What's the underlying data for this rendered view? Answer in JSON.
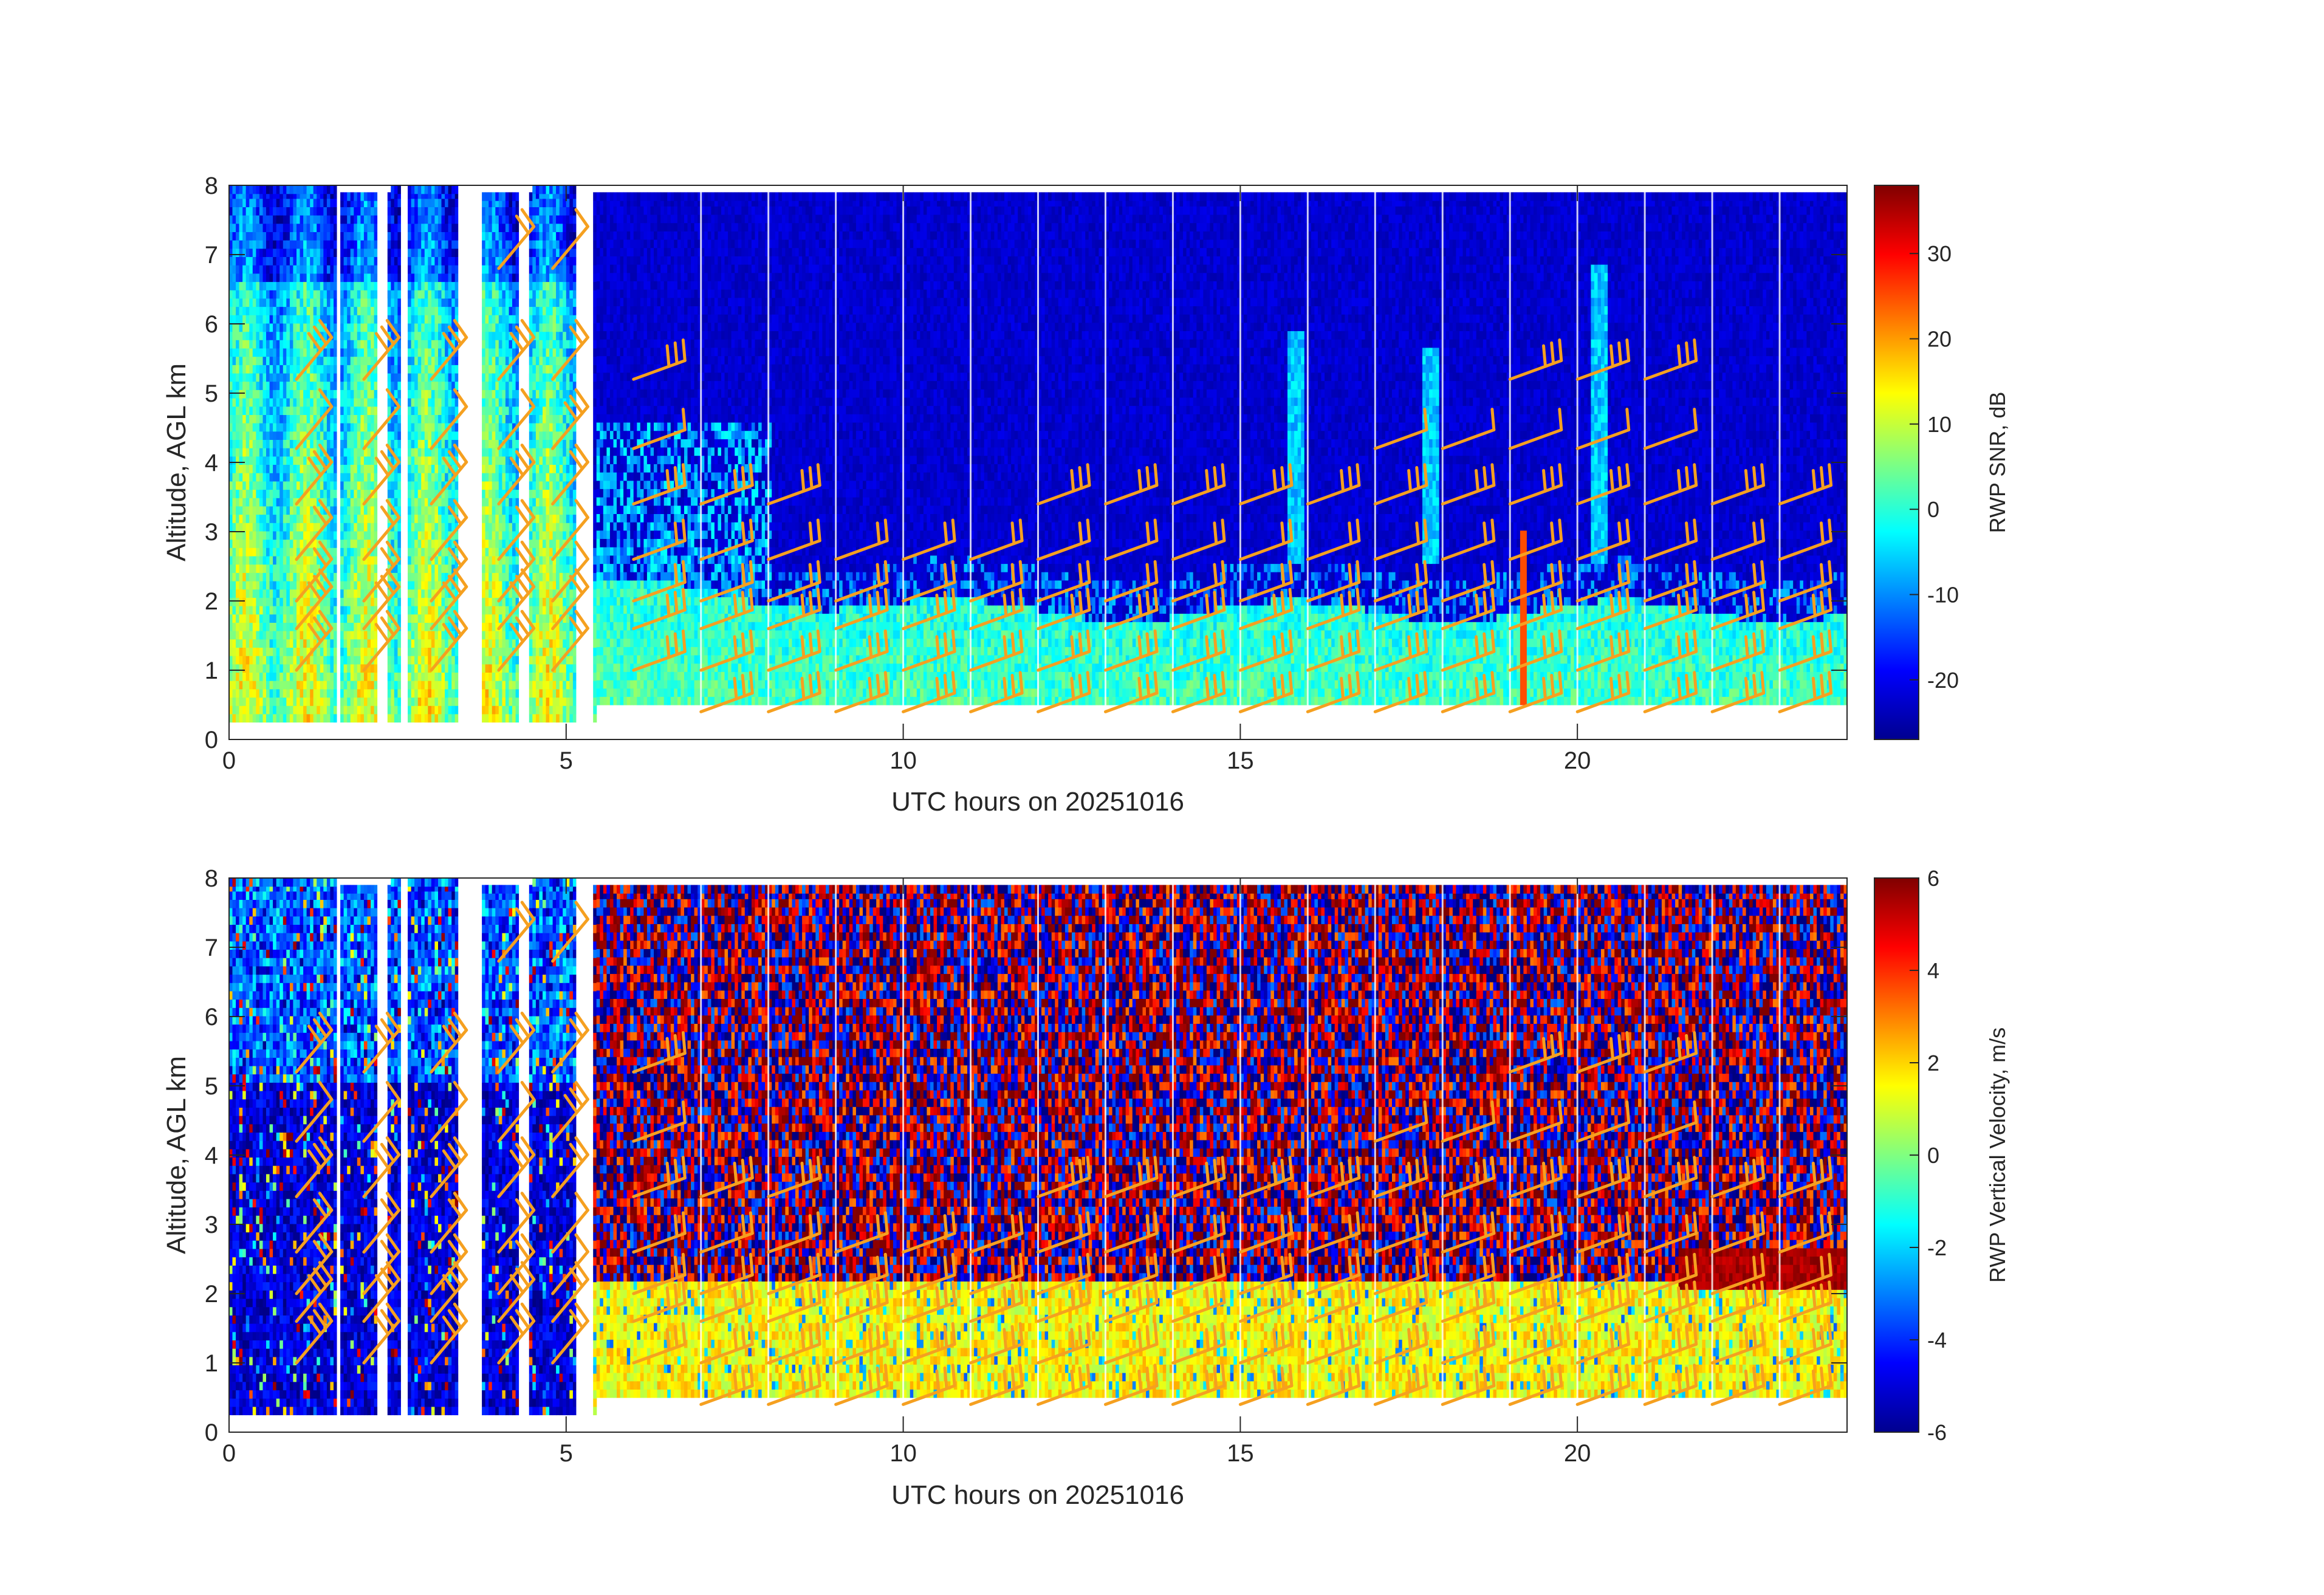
{
  "chart_data": [
    {
      "type": "heatmap",
      "id": "snr",
      "xlabel": "UTC hours on 20251016",
      "ylabel": "Altitude, AGL km",
      "xlim": [
        0,
        24
      ],
      "ylim": [
        0,
        8
      ],
      "x_ticks": [
        0,
        5,
        10,
        15,
        20
      ],
      "y_ticks": [
        0,
        1,
        2,
        3,
        4,
        5,
        6,
        7,
        8
      ],
      "grid": false,
      "colormap": "jet",
      "colorbar": {
        "label": "RWP SNR, dB",
        "range": [
          -27,
          38
        ],
        "ticks": [
          -20,
          -10,
          0,
          10,
          20,
          30
        ]
      },
      "data_gaps_hours": [
        [
          1.6,
          1.65
        ],
        [
          2.2,
          2.35
        ],
        [
          2.55,
          2.65
        ],
        [
          3.4,
          3.75
        ],
        [
          4.3,
          4.45
        ],
        [
          5.15,
          5.4
        ]
      ],
      "description_of_field": "Boundary-layer echo below ~2 km after 07 UTC; deep high-SNR columns 0-5 UTC; weak plumes near 15.8, 17.8 and 20.3 UTC up to 6-7 km; noise floor near -25 dB above",
      "overlay": "wind barbs, orange"
    },
    {
      "type": "heatmap",
      "id": "vv",
      "xlabel": "UTC hours on 20251016",
      "ylabel": "Altitude, AGL km",
      "xlim": [
        0,
        24
      ],
      "ylim": [
        0,
        8
      ],
      "x_ticks": [
        0,
        5,
        10,
        15,
        20
      ],
      "y_ticks": [
        0,
        1,
        2,
        3,
        4,
        5,
        6,
        7,
        8
      ],
      "grid": false,
      "colormap": "jet",
      "colorbar": {
        "label": "RWP Vertical Velocity, m/s",
        "range": [
          -6,
          6
        ],
        "ticks": [
          -6,
          -4,
          -2,
          0,
          2,
          4,
          6
        ]
      },
      "data_gaps_hours": [
        [
          1.6,
          1.65
        ],
        [
          2.2,
          2.35
        ],
        [
          2.55,
          2.65
        ],
        [
          3.4,
          3.75
        ],
        [
          4.3,
          4.45
        ],
        [
          5.15,
          5.4
        ]
      ],
      "description_of_field": "Near-zero velocity (green/yellow) in the boundary layer below ~2 km; strong downward motion (blue) 0-5 UTC; noisy alternating red/blue values aloft",
      "overlay": "wind barbs, orange"
    }
  ],
  "colors": {
    "barb": "#f5a020",
    "axis": "#262626",
    "background": "#ffffff"
  }
}
